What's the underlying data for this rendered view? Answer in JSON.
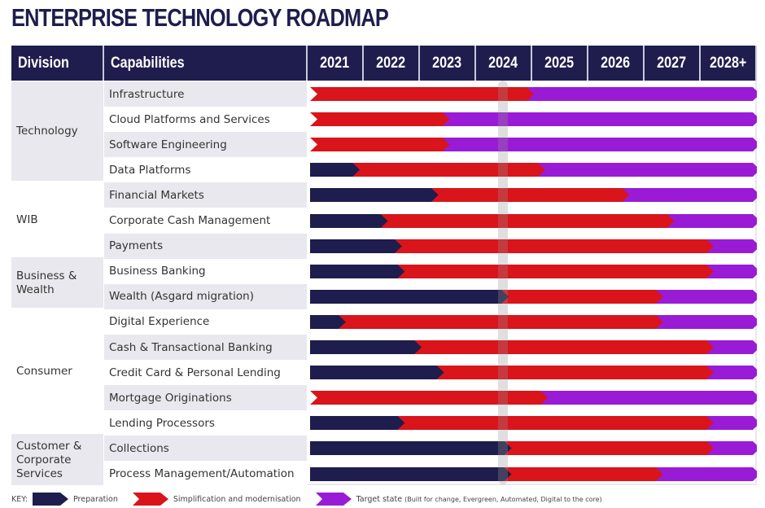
{
  "title": "ENTERPRISE TECHNOLOGY ROADMAP",
  "headers": {
    "division": "Division",
    "capabilities": "Capabilities",
    "years": [
      "2021",
      "2022",
      "2023",
      "2024",
      "2025",
      "2026",
      "2027",
      "2028+"
    ]
  },
  "current_year_marker": "2024",
  "colors": {
    "preparation": "#1f1d4d",
    "simplification": "#d9141a",
    "target": "#9a1bd6",
    "header_bg": "#1f1d4d",
    "row_shade": "#e8e8ee"
  },
  "divisions": [
    {
      "name": "Technology",
      "rows": 4
    },
    {
      "name": "WIB",
      "rows": 3
    },
    {
      "name": "Business & Wealth",
      "rows": 2
    },
    {
      "name": "Consumer",
      "rows": 5
    },
    {
      "name": "Customer & Corporate Services",
      "rows": 2
    }
  ],
  "capabilities": [
    {
      "name": "Infrastructure",
      "prep_end": null,
      "simp_end": 2024.9
    },
    {
      "name": "Cloud Platforms and Services",
      "prep_end": null,
      "simp_end": 2023.4
    },
    {
      "name": "Software Engineering",
      "prep_end": null,
      "simp_end": 2023.4
    },
    {
      "name": "Data Platforms",
      "prep_end": 2021.8,
      "simp_end": 2025.1
    },
    {
      "name": "Financial Markets",
      "prep_end": 2023.2,
      "simp_end": 2026.6
    },
    {
      "name": "Corporate Cash Management",
      "prep_end": 2022.3,
      "simp_end": 2027.4
    },
    {
      "name": "Payments",
      "prep_end": 2022.55,
      "simp_end": 2028.1
    },
    {
      "name": "Business Banking",
      "prep_end": 2022.6,
      "simp_end": 2028.1
    },
    {
      "name": "Wealth (Asgard migration)",
      "prep_end": 2024.45,
      "simp_end": 2027.2
    },
    {
      "name": "Digital Experience",
      "prep_end": 2021.55,
      "simp_end": 2027.2
    },
    {
      "name": "Cash & Transactional Banking",
      "prep_end": 2022.9,
      "simp_end": 2028.1
    },
    {
      "name": "Credit Card & Personal Lending",
      "prep_end": 2023.3,
      "simp_end": 2028.1
    },
    {
      "name": "Mortgage Originations",
      "prep_end": null,
      "simp_end": 2025.15
    },
    {
      "name": "Lending Processors",
      "prep_end": 2022.6,
      "simp_end": 2028.1
    },
    {
      "name": "Collections",
      "prep_end": 2024.5,
      "simp_end": 2028.1
    },
    {
      "name": "Process Management/Automation",
      "prep_end": 2024.5,
      "simp_end": 2027.2
    }
  ],
  "timeline": {
    "start": 2021,
    "end": 2029
  },
  "legend": {
    "key_label": "KEY:",
    "items": [
      {
        "label": "Preparation",
        "color": "#1f1d4d"
      },
      {
        "label": "Simplification and modernisation",
        "color": "#d9141a"
      },
      {
        "label": "Target state",
        "color": "#9a1bd6",
        "note": "(Built for change, Evergreen, Automated, Digital to the core)"
      }
    ]
  }
}
